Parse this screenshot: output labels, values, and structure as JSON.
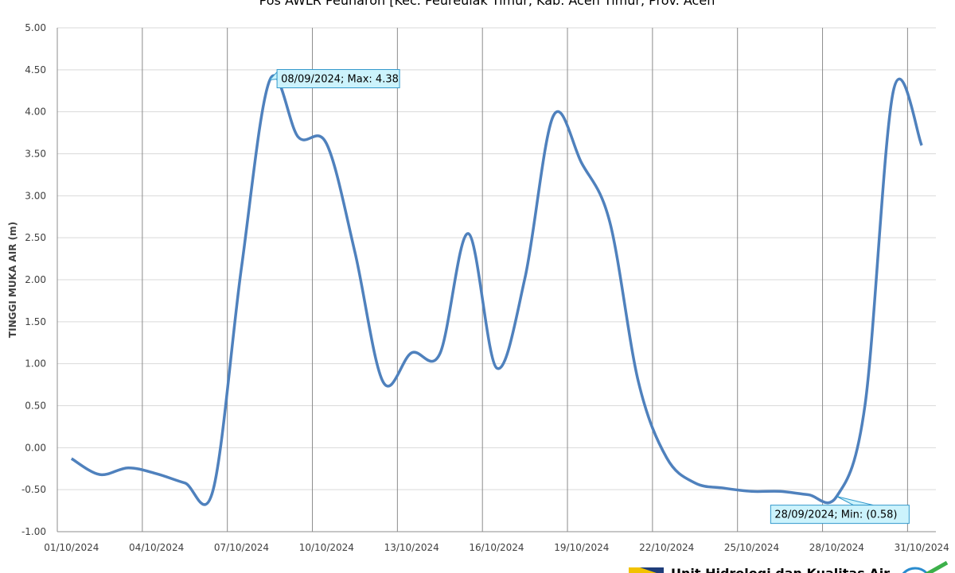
{
  "chart_data": {
    "type": "line",
    "title": "Pos AWLR Peunaron [Kec. Peureulak Timur, Kab. Aceh Timur, Prov. Aceh",
    "y_label": "TINGGI MUKA AIR (m)",
    "categories": [
      "01/10/2024",
      null,
      null,
      "04/10/2024",
      null,
      null,
      "07/10/2024",
      null,
      null,
      "10/10/2024",
      null,
      null,
      "13/10/2024",
      null,
      null,
      "16/10/2024",
      null,
      null,
      "19/10/2024",
      null,
      null,
      "22/10/2024",
      null,
      null,
      "25/10/2024",
      null,
      null,
      "28/10/2024",
      null,
      null,
      "31/10/2024"
    ],
    "values": [
      -0.13,
      -0.32,
      -0.24,
      -0.31,
      -0.42,
      -0.5,
      2.15,
      4.38,
      3.7,
      3.62,
      2.33,
      0.78,
      1.13,
      1.12,
      2.55,
      0.95,
      2.02,
      3.95,
      3.39,
      2.68,
      0.79,
      -0.12,
      -0.42,
      -0.48,
      -0.52,
      -0.52,
      -0.56,
      -0.58,
      0.51,
      4.25,
      3.6
    ],
    "color": "#4f81bd",
    "ylim": [
      -1,
      5
    ],
    "yticks": [
      {
        "value": -1,
        "label": "-1.00"
      },
      {
        "value": -0.5,
        "label": "-0.50"
      },
      {
        "value": 0,
        "label": "0.00"
      },
      {
        "value": 0.5,
        "label": "0.50"
      },
      {
        "value": 1,
        "label": "1.00"
      },
      {
        "value": 1.5,
        "label": "1.50"
      },
      {
        "value": 2,
        "label": "2.00"
      },
      {
        "value": 2.5,
        "label": "2.50"
      },
      {
        "value": 3,
        "label": "3.00"
      },
      {
        "value": 3.5,
        "label": "3.50"
      },
      {
        "value": 4,
        "label": "4.00"
      },
      {
        "value": 4.5,
        "label": "4.50"
      },
      {
        "value": 5,
        "label": "5.00"
      }
    ],
    "grid": true,
    "annotations": [
      {
        "text": "08/09/2024; Max: 4.38",
        "index": 7
      },
      {
        "text": "28/09/2024; Min: (0.58)",
        "index": 27
      }
    ],
    "footer": "Unit Hidrologi dan Kualitas Air"
  }
}
